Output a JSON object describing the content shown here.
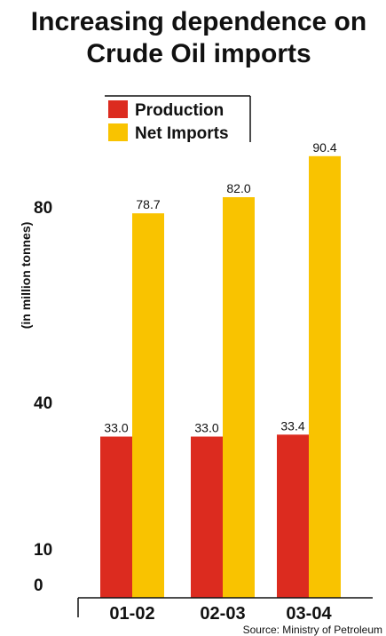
{
  "chart_data": {
    "type": "bar",
    "title": [
      "Increasing dependence on",
      "Crude Oil imports"
    ],
    "ylabel": "(in million tonnes)",
    "categories": [
      "01-02",
      "02-03",
      "03-04"
    ],
    "series": [
      {
        "name": "Production",
        "values": [
          33.0,
          33.0,
          33.4
        ],
        "labels": [
          "33.0",
          "33.0",
          "33.4"
        ],
        "color": "#dc2b1f"
      },
      {
        "name": "Net Imports",
        "values": [
          78.7,
          82.0,
          90.4
        ],
        "labels": [
          "78.7",
          "82.0",
          "90.4"
        ],
        "color": "#f9c300"
      }
    ],
    "yticks": [
      0,
      10,
      40,
      80
    ],
    "legend": "top-left",
    "grid": false,
    "source": "Source: Ministry of Petroleum"
  }
}
